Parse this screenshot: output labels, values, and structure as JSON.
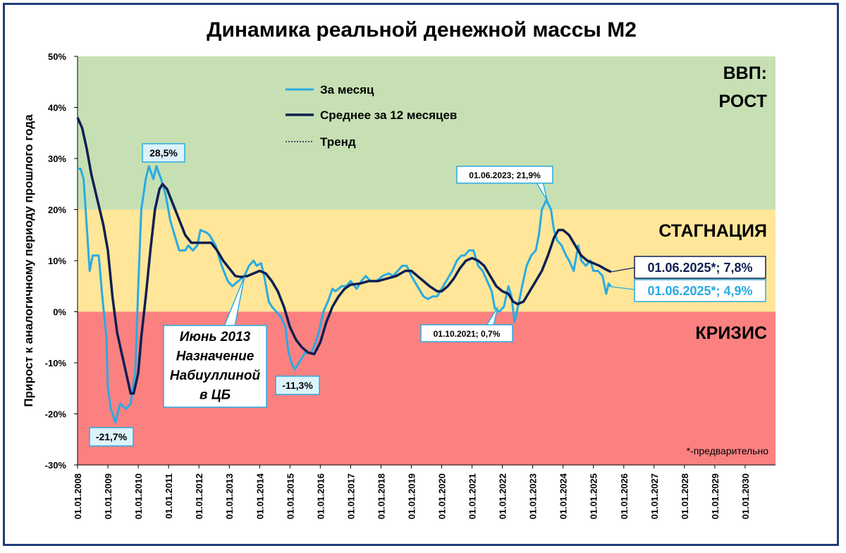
{
  "chart_data": {
    "type": "line",
    "title": "Динамика реальной денежной массы М2",
    "ylabel": "Прирост к аналогичному периоду прошлого года",
    "xlabel": "",
    "ylim": [
      -30,
      50
    ],
    "y_ticks": [
      "50%",
      "40%",
      "30%",
      "20%",
      "10%",
      "0%",
      "-10%",
      "-20%",
      "-30%"
    ],
    "x_ticks": [
      "01.01.2008",
      "01.01.2009",
      "01.01.2010",
      "01.01.2011",
      "01.01.2012",
      "01.01.2013",
      "01.01.2014",
      "01.01.2015",
      "01.01.2016",
      "01.01.2017",
      "01.01.2018",
      "01.01.2019",
      "01.01.2020",
      "01.01.2021",
      "01.01.2022",
      "01.01.2023",
      "01.01.2024",
      "01.01.2025",
      "01.01.2026",
      "01.01.2027",
      "01.01.2028",
      "01.01.2029",
      "01.01.2030"
    ],
    "xlim": [
      2008.0,
      2031.0
    ],
    "zones": [
      {
        "label_lines": [
          "ВВП:",
          "РОСТ"
        ],
        "from": 20,
        "to": 50,
        "color": "#c6e0b4"
      },
      {
        "label_lines": [
          "СТАГНАЦИЯ"
        ],
        "from": 0,
        "to": 20,
        "color": "#ffe699"
      },
      {
        "label_lines": [
          "КРИЗИС"
        ],
        "from": -30,
        "to": 0,
        "color": "#fb8181"
      }
    ],
    "legend": {
      "placement": "top-center",
      "entries": [
        "За месяц",
        "Среднее за 12 месяцев",
        "Тренд"
      ]
    },
    "series": [
      {
        "name": "За месяц",
        "color": "#29abe2",
        "points": [
          [
            2008.0,
            28
          ],
          [
            2008.1,
            28
          ],
          [
            2008.2,
            26
          ],
          [
            2008.3,
            17
          ],
          [
            2008.4,
            8
          ],
          [
            2008.5,
            11
          ],
          [
            2008.7,
            11
          ],
          [
            2008.8,
            4
          ],
          [
            2008.95,
            -5
          ],
          [
            2009.0,
            -15
          ],
          [
            2009.1,
            -19
          ],
          [
            2009.25,
            -21.7
          ],
          [
            2009.4,
            -18
          ],
          [
            2009.6,
            -19
          ],
          [
            2009.75,
            -18
          ],
          [
            2009.9,
            -12
          ],
          [
            2010.0,
            5
          ],
          [
            2010.1,
            20
          ],
          [
            2010.25,
            26
          ],
          [
            2010.35,
            28.5
          ],
          [
            2010.5,
            26
          ],
          [
            2010.6,
            28.5
          ],
          [
            2010.75,
            26
          ],
          [
            2010.9,
            23
          ],
          [
            2011.05,
            18
          ],
          [
            2011.2,
            15
          ],
          [
            2011.35,
            12
          ],
          [
            2011.55,
            12
          ],
          [
            2011.65,
            13
          ],
          [
            2011.8,
            12
          ],
          [
            2011.95,
            13
          ],
          [
            2012.05,
            16
          ],
          [
            2012.25,
            15.5
          ],
          [
            2012.35,
            15
          ],
          [
            2012.55,
            13
          ],
          [
            2012.75,
            9
          ],
          [
            2012.95,
            6
          ],
          [
            2013.1,
            5
          ],
          [
            2013.3,
            6
          ],
          [
            2013.5,
            7
          ],
          [
            2013.65,
            9
          ],
          [
            2013.8,
            10
          ],
          [
            2013.9,
            9
          ],
          [
            2014.05,
            9.5
          ],
          [
            2014.15,
            7
          ],
          [
            2014.3,
            2
          ],
          [
            2014.4,
            1
          ],
          [
            2014.55,
            0
          ],
          [
            2014.7,
            -1
          ],
          [
            2014.85,
            -3
          ],
          [
            2014.95,
            -8
          ],
          [
            2015.05,
            -10
          ],
          [
            2015.15,
            -11.3
          ],
          [
            2015.3,
            -10
          ],
          [
            2015.5,
            -8
          ],
          [
            2015.7,
            -8
          ],
          [
            2015.85,
            -6
          ],
          [
            2015.95,
            -4
          ],
          [
            2016.1,
            0
          ],
          [
            2016.25,
            2
          ],
          [
            2016.4,
            4.5
          ],
          [
            2016.5,
            4
          ],
          [
            2016.7,
            5
          ],
          [
            2016.85,
            5
          ],
          [
            2017.0,
            6
          ],
          [
            2017.2,
            4.5
          ],
          [
            2017.35,
            6
          ],
          [
            2017.5,
            7
          ],
          [
            2017.65,
            6
          ],
          [
            2017.85,
            6
          ],
          [
            2018.05,
            7
          ],
          [
            2018.25,
            7.5
          ],
          [
            2018.4,
            7
          ],
          [
            2018.55,
            8
          ],
          [
            2018.7,
            9
          ],
          [
            2018.85,
            9
          ],
          [
            2019.0,
            7
          ],
          [
            2019.2,
            5
          ],
          [
            2019.4,
            3
          ],
          [
            2019.55,
            2.5
          ],
          [
            2019.7,
            3
          ],
          [
            2019.85,
            3
          ],
          [
            2020.0,
            4.5
          ],
          [
            2020.2,
            6.5
          ],
          [
            2020.35,
            8
          ],
          [
            2020.5,
            10
          ],
          [
            2020.65,
            11
          ],
          [
            2020.75,
            11
          ],
          [
            2020.9,
            12
          ],
          [
            2021.05,
            12
          ],
          [
            2021.2,
            9
          ],
          [
            2021.35,
            8
          ],
          [
            2021.5,
            6
          ],
          [
            2021.65,
            4
          ],
          [
            2021.75,
            0.7
          ],
          [
            2021.9,
            0
          ],
          [
            2022.05,
            1
          ],
          [
            2022.2,
            5
          ],
          [
            2022.3,
            3
          ],
          [
            2022.4,
            -2
          ],
          [
            2022.55,
            2
          ],
          [
            2022.65,
            5
          ],
          [
            2022.8,
            9
          ],
          [
            2022.95,
            11
          ],
          [
            2023.1,
            12
          ],
          [
            2023.2,
            15
          ],
          [
            2023.3,
            20
          ],
          [
            2023.45,
            21.9
          ],
          [
            2023.6,
            20
          ],
          [
            2023.7,
            16
          ],
          [
            2023.8,
            14
          ],
          [
            2023.95,
            13
          ],
          [
            2024.1,
            11
          ],
          [
            2024.2,
            10
          ],
          [
            2024.35,
            8
          ],
          [
            2024.5,
            13
          ],
          [
            2024.6,
            10
          ],
          [
            2024.75,
            9
          ],
          [
            2024.9,
            10
          ],
          [
            2025.0,
            8
          ],
          [
            2025.15,
            8
          ],
          [
            2025.3,
            7
          ],
          [
            2025.42,
            3.5
          ],
          [
            2025.5,
            5.5
          ],
          [
            2025.58,
            4.9
          ]
        ]
      },
      {
        "name": "Среднее за 12 месяцев",
        "color": "#0f1f52",
        "points": [
          [
            2008.0,
            38
          ],
          [
            2008.15,
            36
          ],
          [
            2008.3,
            32
          ],
          [
            2008.45,
            27
          ],
          [
            2008.65,
            22
          ],
          [
            2008.85,
            17
          ],
          [
            2009.0,
            12
          ],
          [
            2009.15,
            3
          ],
          [
            2009.3,
            -4
          ],
          [
            2009.45,
            -8
          ],
          [
            2009.6,
            -12
          ],
          [
            2009.75,
            -16
          ],
          [
            2009.85,
            -16
          ],
          [
            2010.0,
            -12
          ],
          [
            2010.1,
            -5
          ],
          [
            2010.25,
            3
          ],
          [
            2010.4,
            12
          ],
          [
            2010.55,
            20
          ],
          [
            2010.7,
            24
          ],
          [
            2010.8,
            25
          ],
          [
            2010.95,
            24
          ],
          [
            2011.15,
            21
          ],
          [
            2011.35,
            18
          ],
          [
            2011.55,
            15
          ],
          [
            2011.75,
            13.5
          ],
          [
            2011.95,
            13.5
          ],
          [
            2012.15,
            13.5
          ],
          [
            2012.4,
            13.5
          ],
          [
            2012.6,
            12
          ],
          [
            2012.8,
            10
          ],
          [
            2013.0,
            8.5
          ],
          [
            2013.2,
            7
          ],
          [
            2013.4,
            6.8
          ],
          [
            2013.6,
            7
          ],
          [
            2013.8,
            7.5
          ],
          [
            2014.0,
            8
          ],
          [
            2014.2,
            7.5
          ],
          [
            2014.4,
            6
          ],
          [
            2014.6,
            4
          ],
          [
            2014.8,
            1
          ],
          [
            2015.0,
            -3
          ],
          [
            2015.2,
            -5.5
          ],
          [
            2015.4,
            -7
          ],
          [
            2015.6,
            -8
          ],
          [
            2015.8,
            -8.3
          ],
          [
            2016.0,
            -6
          ],
          [
            2016.2,
            -2
          ],
          [
            2016.4,
            1
          ],
          [
            2016.6,
            3
          ],
          [
            2016.8,
            4.5
          ],
          [
            2017.0,
            5.3
          ],
          [
            2017.3,
            5.5
          ],
          [
            2017.6,
            6
          ],
          [
            2017.9,
            6
          ],
          [
            2018.2,
            6.5
          ],
          [
            2018.5,
            7
          ],
          [
            2018.8,
            8
          ],
          [
            2019.0,
            8
          ],
          [
            2019.2,
            7
          ],
          [
            2019.4,
            6
          ],
          [
            2019.6,
            5
          ],
          [
            2019.85,
            4
          ],
          [
            2020.0,
            4
          ],
          [
            2020.2,
            5
          ],
          [
            2020.4,
            6.5
          ],
          [
            2020.6,
            8.5
          ],
          [
            2020.8,
            10
          ],
          [
            2021.0,
            10.5
          ],
          [
            2021.2,
            10
          ],
          [
            2021.4,
            9
          ],
          [
            2021.6,
            7
          ],
          [
            2021.8,
            5
          ],
          [
            2022.0,
            4
          ],
          [
            2022.2,
            3.5
          ],
          [
            2022.35,
            2
          ],
          [
            2022.5,
            1.5
          ],
          [
            2022.7,
            2
          ],
          [
            2022.9,
            4
          ],
          [
            2023.1,
            6
          ],
          [
            2023.3,
            8
          ],
          [
            2023.5,
            11
          ],
          [
            2023.7,
            14.5
          ],
          [
            2023.85,
            16
          ],
          [
            2024.0,
            16
          ],
          [
            2024.2,
            15
          ],
          [
            2024.4,
            13
          ],
          [
            2024.6,
            11
          ],
          [
            2024.8,
            10
          ],
          [
            2025.0,
            9.5
          ],
          [
            2025.2,
            9
          ],
          [
            2025.4,
            8.3
          ],
          [
            2025.58,
            7.8
          ]
        ]
      }
    ],
    "annotations": [
      {
        "text": "28,5%",
        "style": "box",
        "anchor": [
          2010.35,
          28.5
        ]
      },
      {
        "text": "-21,7%",
        "style": "box",
        "anchor": [
          2009.25,
          -21.7
        ]
      },
      {
        "text": "-11,3%",
        "style": "box",
        "anchor": [
          2015.15,
          -11.3
        ]
      },
      {
        "text": "01.06.2023; 21,9%",
        "style": "callout",
        "anchor": [
          2023.45,
          21.9
        ]
      },
      {
        "text": "01.10.2021; 0,7%",
        "style": "callout",
        "anchor": [
          2021.75,
          0.7
        ]
      },
      {
        "lines": [
          "Июнь 2013",
          "Назначение",
          "Набиуллиной",
          "в ЦБ"
        ],
        "style": "callout-big",
        "anchor": [
          2013.45,
          7
        ]
      },
      {
        "text": "01.06.2025*; 7,8%",
        "style": "end",
        "color": "#0f1f52",
        "anchor": [
          2025.58,
          7.8
        ]
      },
      {
        "text": "01.06.2025*; 4,9%",
        "style": "end",
        "color": "#29abe2",
        "anchor": [
          2025.58,
          4.9
        ]
      }
    ],
    "footnote": "*-предварительно"
  }
}
